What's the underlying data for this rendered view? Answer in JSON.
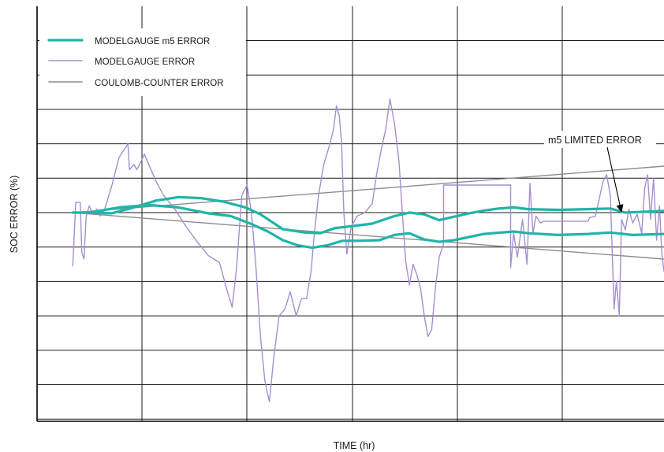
{
  "chart_data": {
    "type": "line",
    "title": "",
    "xlabel": "TIME (hr)",
    "ylabel": "SOC ERROR (%)",
    "x_tick_labels": [],
    "y_tick_labels": [],
    "xlim": [
      0,
      842
    ],
    "ylim": [
      -6,
      6
    ],
    "grid": true,
    "legend_position": "top-left",
    "annotation": {
      "text": "m5 LIMITED ERROR",
      "target": [
        785,
        1.0
      ]
    },
    "series": [
      {
        "name": "MODELGAUGE m5 ERROR",
        "color": "#1fb5a8",
        "width": 3.2,
        "segments": [
          [
            [
              48,
              1.0
            ],
            [
              70,
              1.0
            ],
            [
              100,
              0.98
            ],
            [
              130,
              1.15
            ],
            [
              160,
              1.35
            ],
            [
              190,
              1.45
            ],
            [
              220,
              1.42
            ],
            [
              250,
              1.32
            ],
            [
              280,
              1.15
            ],
            [
              300,
              0.95
            ],
            [
              330,
              0.52
            ],
            [
              360,
              0.42
            ],
            [
              380,
              0.4
            ],
            [
              400,
              0.55
            ],
            [
              420,
              0.6
            ],
            [
              450,
              0.68
            ],
            [
              480,
              0.9
            ],
            [
              500,
              1.0
            ],
            [
              520,
              0.95
            ],
            [
              540,
              0.78
            ],
            [
              560,
              0.88
            ],
            [
              580,
              0.98
            ],
            [
              600,
              1.06
            ],
            [
              620,
              1.12
            ],
            [
              640,
              1.15
            ],
            [
              660,
              1.1
            ],
            [
              700,
              1.08
            ],
            [
              740,
              1.1
            ],
            [
              770,
              1.12
            ],
            [
              790,
              1.0
            ],
            [
              842,
              1.05
            ]
          ],
          [
            [
              70,
              1.0
            ],
            [
              110,
              1.15
            ],
            [
              150,
              1.22
            ],
            [
              190,
              1.15
            ],
            [
              230,
              0.98
            ],
            [
              260,
              0.9
            ],
            [
              290,
              0.65
            ],
            [
              310,
              0.45
            ],
            [
              330,
              0.2
            ],
            [
              350,
              0.05
            ],
            [
              370,
              -0.02
            ],
            [
              390,
              0.05
            ],
            [
              410,
              0.18
            ],
            [
              430,
              0.18
            ],
            [
              460,
              0.2
            ],
            [
              480,
              0.35
            ],
            [
              500,
              0.4
            ],
            [
              520,
              0.22
            ],
            [
              540,
              0.15
            ],
            [
              560,
              0.2
            ],
            [
              600,
              0.38
            ],
            [
              640,
              0.45
            ],
            [
              660,
              0.4
            ],
            [
              700,
              0.35
            ],
            [
              740,
              0.38
            ],
            [
              770,
              0.42
            ],
            [
              800,
              0.35
            ],
            [
              842,
              0.38
            ]
          ]
        ]
      },
      {
        "name": "MODELGAUGE ERROR",
        "color": "#a58fd0",
        "width": 1.4,
        "segments": [
          [
            [
              48,
              -0.55
            ],
            [
              52,
              1.3
            ],
            [
              58,
              1.3
            ],
            [
              60,
              -0.15
            ],
            [
              63,
              -0.35
            ],
            [
              66,
              0.9
            ],
            [
              70,
              1.2
            ],
            [
              75,
              0.95
            ],
            [
              80,
              1.1
            ],
            [
              85,
              0.9
            ],
            [
              90,
              1.05
            ],
            [
              100,
              1.75
            ],
            [
              110,
              2.6
            ],
            [
              122,
              3.0
            ],
            [
              124,
              2.25
            ],
            [
              130,
              2.4
            ],
            [
              134,
              2.25
            ],
            [
              140,
              2.5
            ],
            [
              144,
              2.7
            ],
            [
              150,
              2.4
            ],
            [
              160,
              1.9
            ],
            [
              170,
              1.5
            ],
            [
              185,
              1.1
            ],
            [
              200,
              0.6
            ],
            [
              215,
              0.15
            ],
            [
              230,
              -0.25
            ],
            [
              245,
              -0.45
            ],
            [
              255,
              -1.25
            ],
            [
              262,
              -1.75
            ],
            [
              268,
              -0.6
            ],
            [
              275,
              1.5
            ],
            [
              282,
              1.8
            ],
            [
              288,
              1.0
            ],
            [
              294,
              -0.6
            ],
            [
              300,
              -2.6
            ],
            [
              306,
              -3.9
            ],
            [
              312,
              -4.5
            ],
            [
              318,
              -3.2
            ],
            [
              325,
              -2.0
            ],
            [
              333,
              -1.8
            ],
            [
              340,
              -1.3
            ],
            [
              348,
              -2.0
            ],
            [
              355,
              -1.5
            ],
            [
              362,
              -1.5
            ],
            [
              368,
              -0.7
            ],
            [
              372,
              0.3
            ],
            [
              378,
              1.5
            ],
            [
              385,
              2.4
            ],
            [
              392,
              2.9
            ],
            [
              398,
              3.4
            ],
            [
              402,
              4.1
            ],
            [
              406,
              3.8
            ],
            [
              409,
              3.0
            ],
            [
              412,
              1.0
            ],
            [
              416,
              -0.2
            ],
            [
              422,
              0.6
            ],
            [
              430,
              0.9
            ],
            [
              440,
              1.0
            ],
            [
              450,
              1.25
            ],
            [
              456,
              2.1
            ],
            [
              462,
              2.8
            ],
            [
              468,
              3.4
            ],
            [
              474,
              4.3
            ],
            [
              480,
              3.6
            ],
            [
              486,
              2.5
            ],
            [
              490,
              1.2
            ],
            [
              495,
              -0.4
            ],
            [
              500,
              -1.1
            ],
            [
              505,
              -0.5
            ],
            [
              510,
              -0.8
            ],
            [
              515,
              -1.2
            ],
            [
              520,
              -2.0
            ],
            [
              525,
              -2.6
            ],
            [
              530,
              -2.4
            ],
            [
              535,
              -1.2
            ],
            [
              540,
              -0.3
            ],
            [
              546,
              0.1
            ],
            [
              546,
              1.8
            ],
            [
              636,
              1.8
            ],
            [
              636,
              -0.6
            ],
            [
              640,
              0.4
            ],
            [
              645,
              -0.3
            ],
            [
              652,
              0.8
            ],
            [
              658,
              -0.5
            ],
            [
              662,
              1.85
            ],
            [
              666,
              0.4
            ],
            [
              670,
              0.9
            ],
            [
              676,
              0.7
            ],
            [
              680,
              0.75
            ],
            [
              740,
              0.75
            ],
            [
              742,
              0.85
            ],
            [
              750,
              0.9
            ],
            [
              755,
              1.4
            ],
            [
              760,
              1.9
            ],
            [
              765,
              2.1
            ],
            [
              770,
              1.5
            ],
            [
              775,
              -1.8
            ],
            [
              778,
              -1.0
            ],
            [
              782,
              -2.0
            ],
            [
              785,
              0.8
            ],
            [
              790,
              0.5
            ],
            [
              795,
              1.1
            ],
            [
              800,
              0.7
            ],
            [
              806,
              0.95
            ],
            [
              812,
              0.4
            ],
            [
              816,
              1.7
            ],
            [
              820,
              2.1
            ],
            [
              824,
              0.8
            ],
            [
              828,
              2.0
            ],
            [
              832,
              0.2
            ],
            [
              836,
              1.2
            ],
            [
              839,
              -0.2
            ],
            [
              842,
              -0.7
            ]
          ]
        ]
      },
      {
        "name": "COULOMB-COUNTER ERROR",
        "color": "#8c8c8c",
        "width": 1.4,
        "segments": [
          [
            [
              48,
              1.0
            ],
            [
              842,
              2.35
            ]
          ],
          [
            [
              48,
              1.0
            ],
            [
              842,
              -0.35
            ]
          ]
        ]
      }
    ]
  }
}
